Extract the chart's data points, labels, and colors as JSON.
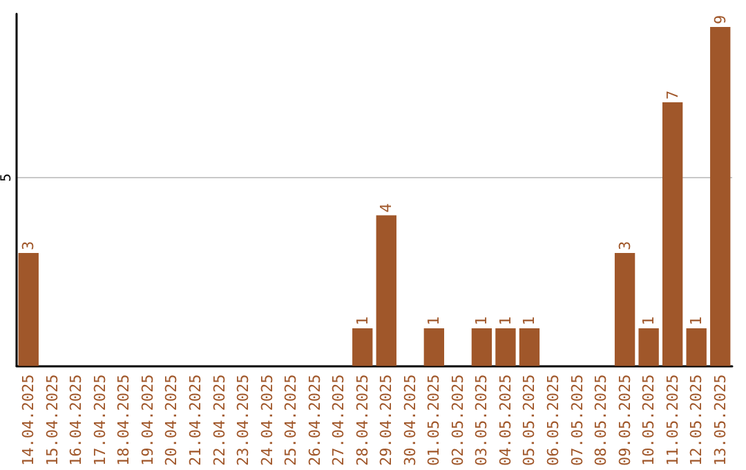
{
  "chart_data": {
    "type": "bar",
    "categories": [
      "14.04.2025",
      "15.04.2025",
      "16.04.2025",
      "17.04.2025",
      "18.04.2025",
      "19.04.2025",
      "20.04.2025",
      "21.04.2025",
      "22.04.2025",
      "23.04.2025",
      "24.04.2025",
      "25.04.2025",
      "26.04.2025",
      "27.04.2025",
      "28.04.2025",
      "29.04.2025",
      "30.04.2025",
      "01.05.2025",
      "02.05.2025",
      "03.05.2025",
      "04.05.2025",
      "05.05.2025",
      "06.05.2025",
      "07.05.2025",
      "08.05.2025",
      "09.05.2025",
      "10.05.2025",
      "11.05.2025",
      "12.05.2025",
      "13.05.2025"
    ],
    "values": [
      3,
      null,
      null,
      null,
      null,
      null,
      null,
      null,
      null,
      null,
      null,
      null,
      null,
      null,
      1,
      4,
      null,
      1,
      null,
      1,
      1,
      1,
      null,
      null,
      null,
      3,
      1,
      7,
      1,
      9
    ],
    "color": "#a0572a",
    "ylim": [
      0,
      9.35
    ],
    "yticks": [
      5
    ],
    "grid": "y",
    "data_labels": true
  }
}
